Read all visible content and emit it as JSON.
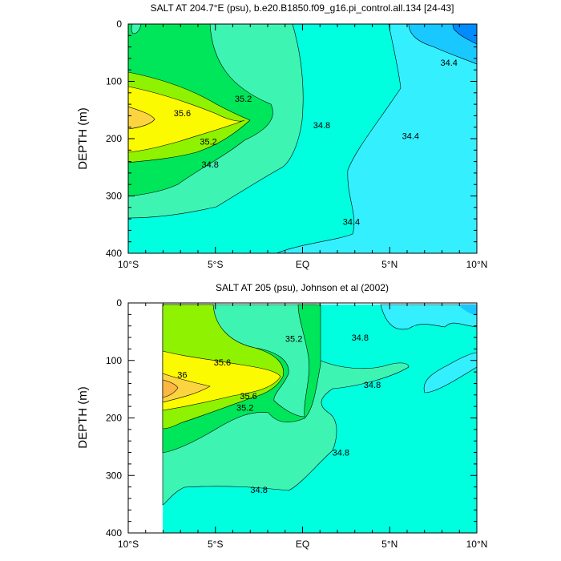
{
  "chart_data": [
    {
      "type": "contour",
      "title": "SALT AT 204.7°E (psu), b.e20.B1850.f09_g16.pi_control.all.134 [24-43]",
      "ylabel": "DEPTH (m)",
      "xlabel": "",
      "xlim": [
        -10,
        10
      ],
      "ylim": [
        400,
        0
      ],
      "y_reversed": true,
      "x_ticks": [
        {
          "value": -10,
          "label": "10°S"
        },
        {
          "value": -5,
          "label": "5°S"
        },
        {
          "value": 0,
          "label": "EQ"
        },
        {
          "value": 5,
          "label": "5°N"
        },
        {
          "value": 10,
          "label": "10°N"
        }
      ],
      "y_ticks": [
        0,
        100,
        200,
        300,
        400
      ],
      "data_x_range": [
        -10,
        10
      ],
      "contour_levels": [
        34.0,
        34.2,
        34.4,
        34.6,
        34.8,
        35.0,
        35.2,
        35.4,
        35.6,
        35.8,
        36.0
      ],
      "contour_labels": [
        {
          "text": "35.6",
          "x": -6.9,
          "y": 155
        },
        {
          "text": "35.2",
          "x": -3.4,
          "y": 130
        },
        {
          "text": "35.2",
          "x": -5.4,
          "y": 205
        },
        {
          "text": "34.8",
          "x": -5.3,
          "y": 245
        },
        {
          "text": "34.8",
          "x": 1.1,
          "y": 176
        },
        {
          "text": "34.4",
          "x": 6.2,
          "y": 195
        },
        {
          "text": "34.4",
          "x": 8.4,
          "y": 67
        },
        {
          "text": "34.4",
          "x": 2.8,
          "y": 345
        }
      ]
    },
    {
      "type": "contour",
      "title": "SALT AT 205 (psu), Johnson et al (2002)",
      "ylabel": "DEPTH (m)",
      "xlabel": "",
      "xlim": [
        -10,
        10
      ],
      "ylim": [
        400,
        0
      ],
      "y_reversed": true,
      "x_ticks": [
        {
          "value": -10,
          "label": "10°S"
        },
        {
          "value": -5,
          "label": "5°S"
        },
        {
          "value": 0,
          "label": "EQ"
        },
        {
          "value": 5,
          "label": "5°N"
        },
        {
          "value": 10,
          "label": "10°N"
        }
      ],
      "y_ticks": [
        0,
        100,
        200,
        300,
        400
      ],
      "data_x_range": [
        -8,
        10
      ],
      "contour_levels": [
        34.0,
        34.2,
        34.4,
        34.6,
        34.8,
        35.0,
        35.2,
        35.4,
        35.6,
        35.8,
        36.0
      ],
      "contour_labels": [
        {
          "text": "36",
          "x": -6.9,
          "y": 125
        },
        {
          "text": "35.6",
          "x": -4.6,
          "y": 103
        },
        {
          "text": "35.6",
          "x": -3.1,
          "y": 162
        },
        {
          "text": "35.2",
          "x": -3.3,
          "y": 182
        },
        {
          "text": "35.2",
          "x": -0.5,
          "y": 62
        },
        {
          "text": "34.8",
          "x": 3.3,
          "y": 60
        },
        {
          "text": "34.8",
          "x": 4.0,
          "y": 142
        },
        {
          "text": "34.8",
          "x": 2.2,
          "y": 260
        },
        {
          "text": "34.8",
          "x": -2.5,
          "y": 325
        }
      ]
    }
  ]
}
